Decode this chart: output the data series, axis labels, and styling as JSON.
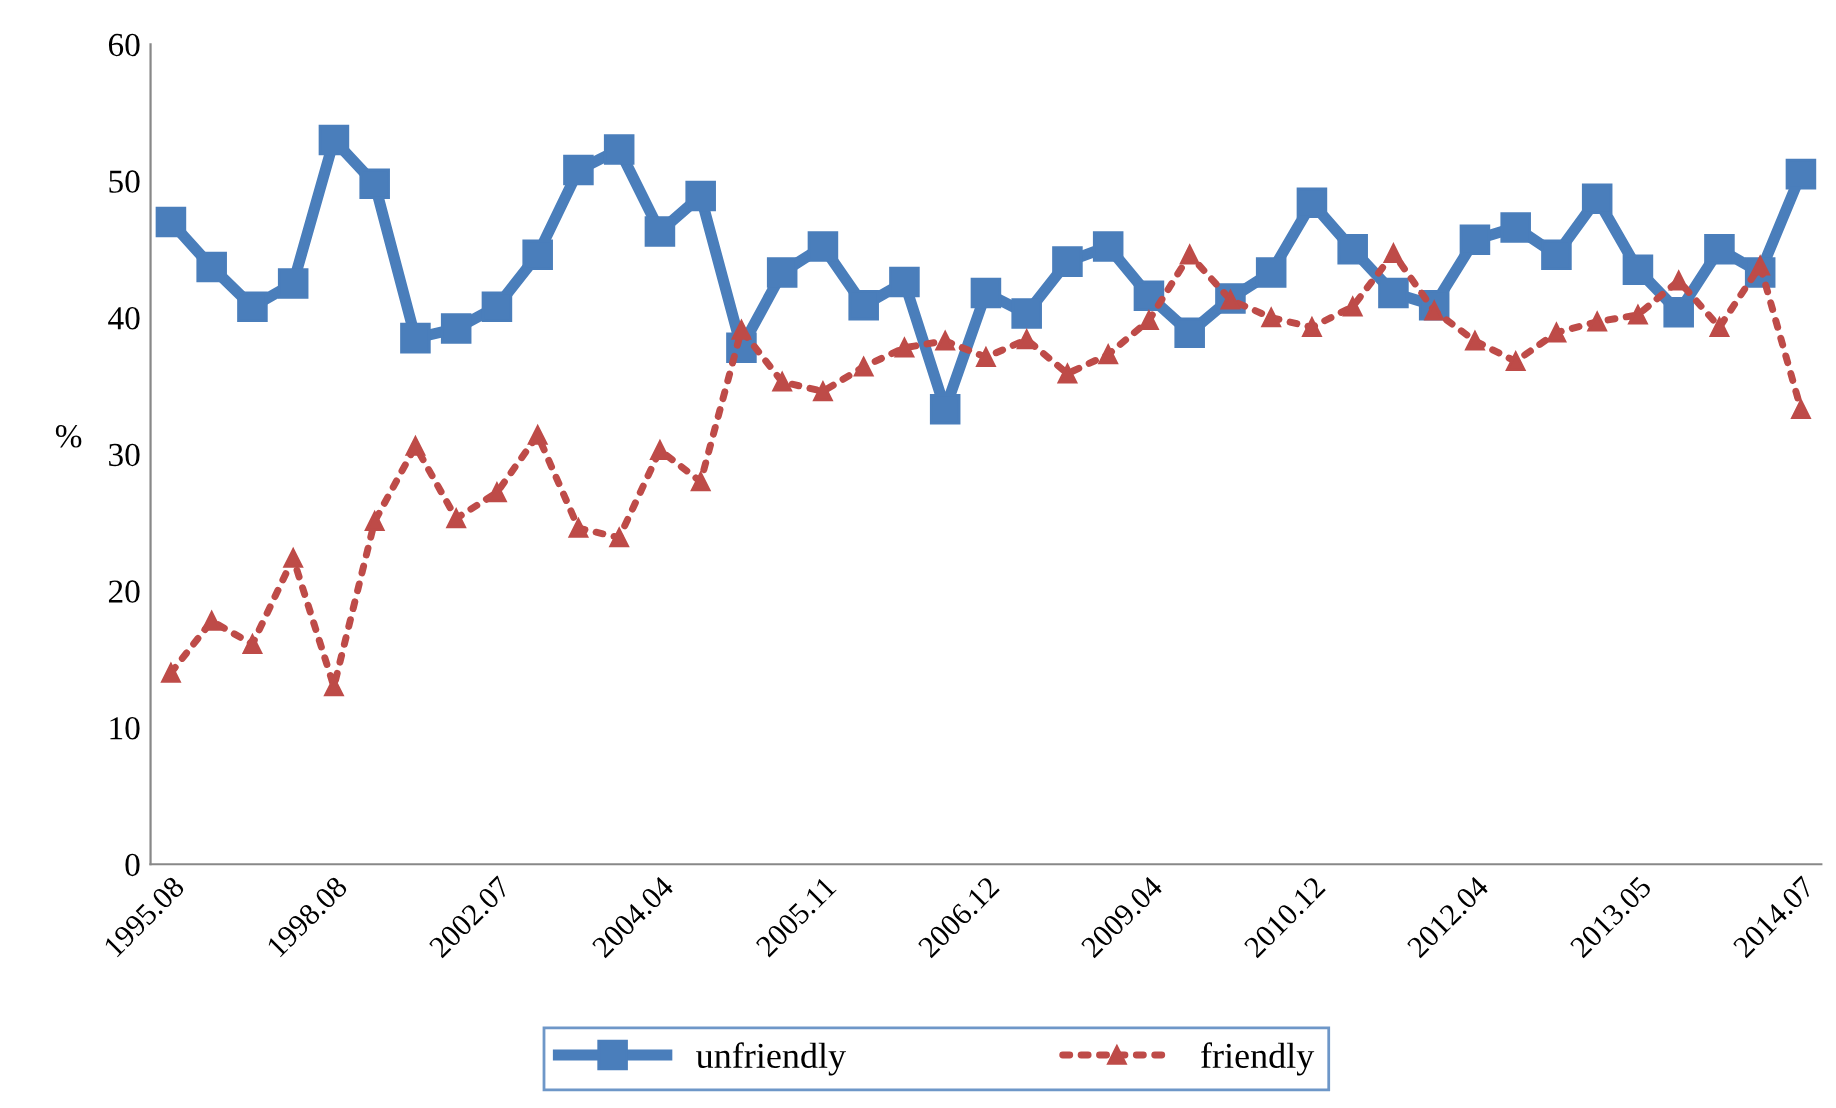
{
  "chart_data": {
    "type": "line",
    "ylabel": "%",
    "categories": [
      "1995.08",
      null,
      null,
      null,
      "1998.08",
      null,
      null,
      null,
      "2002.07",
      null,
      null,
      null,
      "2004.04",
      null,
      null,
      null,
      "2005.11",
      null,
      null,
      null,
      "2006.12",
      null,
      null,
      null,
      "2009.04",
      null,
      null,
      null,
      "2010.12",
      null,
      null,
      null,
      "2012.04",
      null,
      null,
      null,
      "2013.05",
      null,
      null,
      null,
      "2014.07"
    ],
    "series": [
      {
        "name": "unfriendly",
        "color": "#4a7ebb",
        "marker": "square",
        "line_style": "solid",
        "values": [
          47,
          43.7,
          40.8,
          42.5,
          53,
          49.8,
          38.5,
          39.2,
          40.8,
          44.6,
          50.8,
          52.3,
          46.3,
          48.9,
          37.8,
          43.3,
          45.2,
          40.9,
          42.6,
          33.3,
          41.8,
          40.3,
          44.1,
          45.2,
          41.6,
          38.9,
          41.4,
          43.3,
          48.4,
          45,
          41.8,
          40.9,
          45.7,
          46.6,
          44.6,
          48.7,
          43.5,
          40.4,
          45,
          43.3,
          50.5
        ]
      },
      {
        "name": "friendly",
        "color": "#be4b48",
        "marker": "triangle",
        "line_style": "dotted",
        "values": [
          14,
          17.8,
          16.1,
          22.4,
          13,
          25.1,
          30.6,
          25.3,
          27.2,
          31.4,
          24.6,
          23.9,
          30.3,
          28,
          39.1,
          35.3,
          34.6,
          36.4,
          37.8,
          38.3,
          37.1,
          38.4,
          35.9,
          37.3,
          39.8,
          44.6,
          41.3,
          40,
          39.3,
          40.8,
          44.7,
          40.5,
          38.3,
          36.8,
          38.9,
          39.7,
          40.2,
          42.7,
          39.3,
          43.8,
          33.3
        ]
      }
    ],
    "ylim": [
      0,
      60
    ],
    "yticks": [
      0,
      10,
      20,
      30,
      40,
      50,
      60
    ],
    "grid": false,
    "legend": "bottom"
  }
}
